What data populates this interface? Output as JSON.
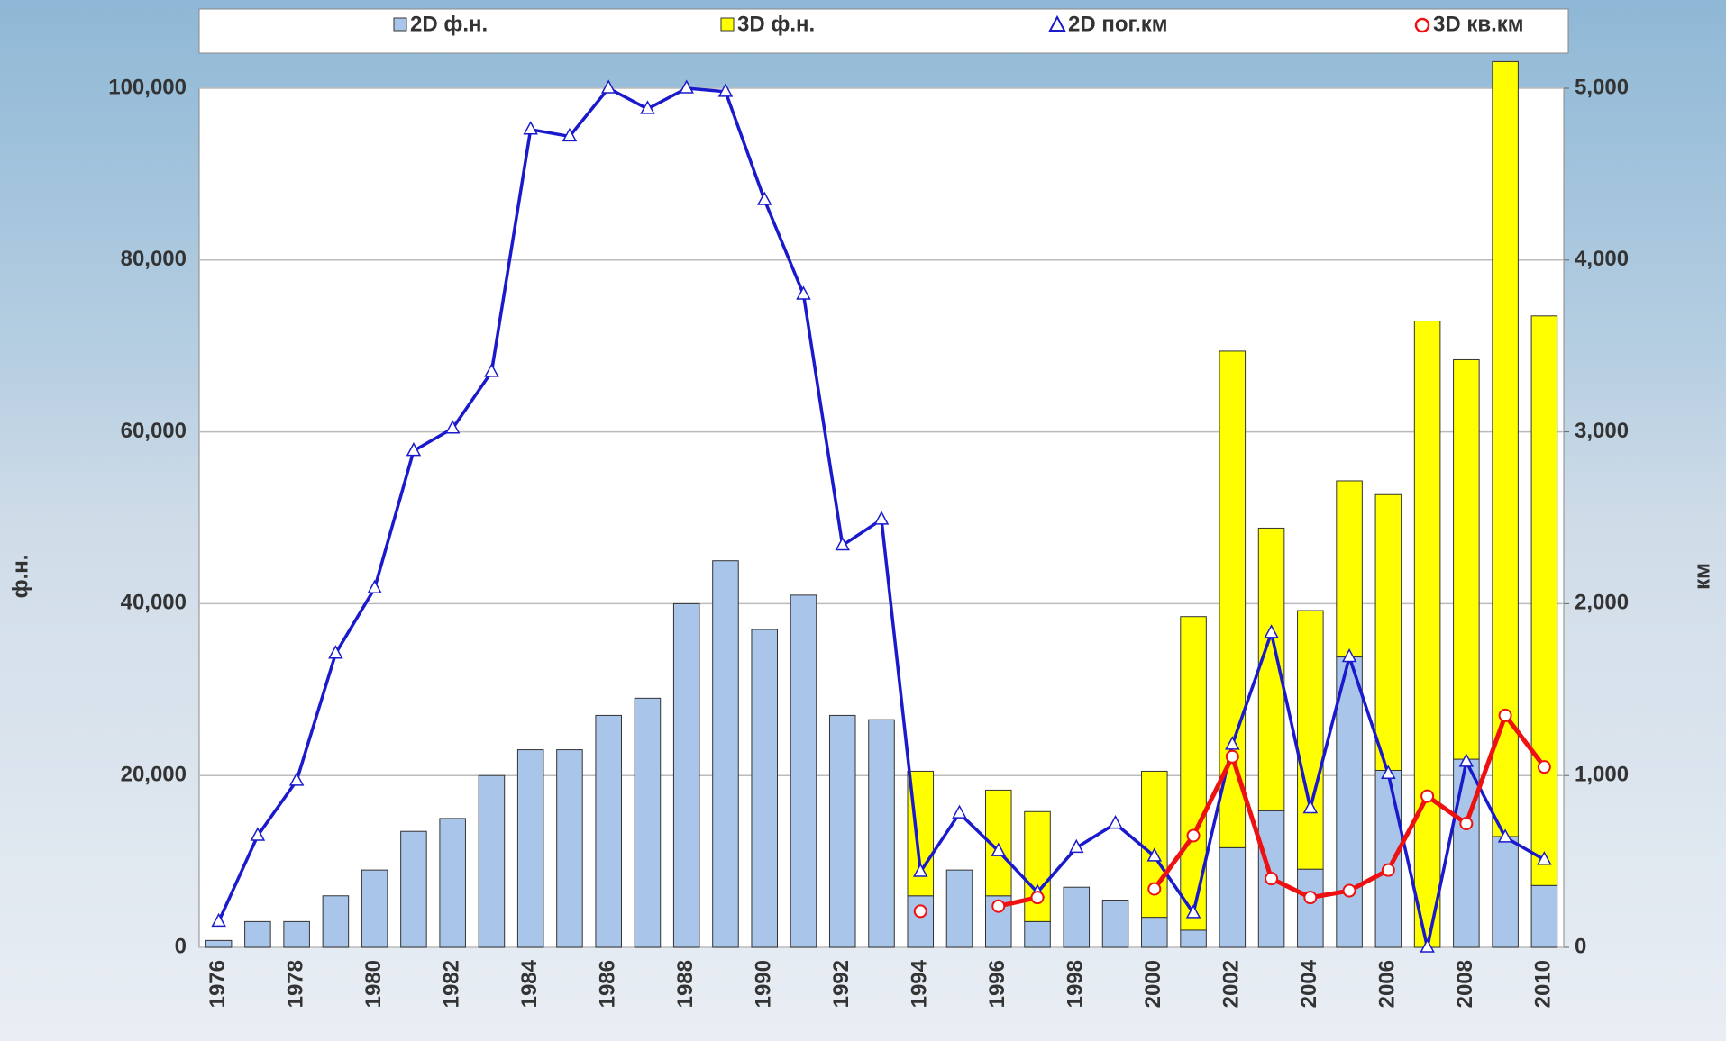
{
  "chart_data": {
    "type": "bar",
    "y_label": "ф.н.",
    "y2_label": "км",
    "categories": [
      "1976",
      null,
      "1978",
      null,
      "1980",
      null,
      "1982",
      null,
      "1984",
      null,
      "1986",
      null,
      "1988",
      null,
      "1990",
      null,
      "1992",
      null,
      "1994",
      null,
      "1996",
      null,
      "1998",
      null,
      "2000",
      null,
      "2002",
      null,
      "2004",
      null,
      "2006",
      null,
      "2008",
      null,
      "2010"
    ],
    "ylim": [
      0,
      100000
    ],
    "yticks": [
      0,
      {
        "value": 20000,
        "label": "20,000"
      },
      {
        "value": 40000,
        "label": "40,000"
      },
      {
        "value": 60000,
        "label": "60,000"
      },
      {
        "value": 80000,
        "label": "80,000"
      },
      {
        "value": 100000,
        "label": "100,000"
      }
    ],
    "y2lim": [
      0,
      5000
    ],
    "y2ticks": [
      0,
      {
        "value": 1000,
        "label": "1,000"
      },
      {
        "value": 2000,
        "label": "2,000"
      },
      {
        "value": 3000,
        "label": "3,000"
      },
      {
        "value": 4000,
        "label": "4,000"
      },
      {
        "value": 5000,
        "label": "5,000"
      }
    ],
    "grid": true,
    "stacked": true,
    "legend": "top",
    "series": [
      {
        "name": "2D ф.н.",
        "type": "bar",
        "color": "#a9c6ea",
        "values": [
          800,
          3000,
          3000,
          6000,
          9000,
          13500,
          15000,
          20000,
          23000,
          23000,
          27000,
          29000,
          40000,
          45000,
          37000,
          41000,
          27000,
          26500,
          6000,
          9000,
          6000,
          3000,
          7000,
          5500,
          3500,
          2000,
          11600,
          15900,
          9100,
          33800,
          20600,
          0,
          21900,
          12900,
          7200
        ]
      },
      {
        "name": "3D ф.н.",
        "type": "bar",
        "color": "#ffff00",
        "values": [
          0,
          0,
          0,
          0,
          0,
          0,
          0,
          0,
          0,
          0,
          0,
          0,
          0,
          0,
          0,
          0,
          0,
          0,
          14500,
          0,
          12300,
          12800,
          0,
          0,
          17000,
          36500,
          57800,
          32900,
          30100,
          20500,
          32100,
          72900,
          46500,
          90200,
          66300
        ]
      },
      {
        "name": "2D пог.км",
        "type": "line",
        "axis": "y2",
        "color": "#1a1acc",
        "marker": "triangle",
        "values": [
          150,
          650,
          970,
          1710,
          2090,
          2890,
          3020,
          3350,
          4760,
          4720,
          5000,
          4880,
          5000,
          4980,
          4350,
          3800,
          2340,
          2490,
          440,
          780,
          560,
          320,
          580,
          720,
          530,
          200,
          1180,
          1830,
          810,
          1690,
          1010,
          0,
          1080,
          640,
          510
        ]
      },
      {
        "name": "3D кв.км",
        "type": "line",
        "axis": "y2",
        "color": "#ee1111",
        "marker": "circle",
        "values": [
          null,
          null,
          null,
          null,
          null,
          null,
          null,
          null,
          null,
          null,
          null,
          null,
          null,
          null,
          null,
          null,
          null,
          null,
          210,
          null,
          240,
          290,
          null,
          null,
          340,
          650,
          1110,
          400,
          290,
          330,
          450,
          880,
          720,
          1350,
          1050
        ]
      }
    ]
  }
}
